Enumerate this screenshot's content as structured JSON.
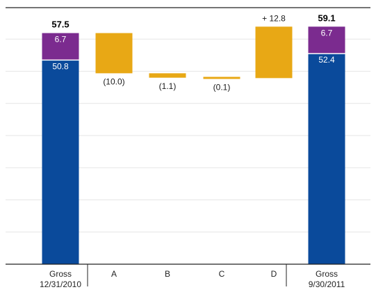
{
  "chart_data": {
    "type": "bar",
    "ylim": [
      0,
      64
    ],
    "grid": true,
    "categories": [
      "Gross\n12/31/2010",
      "A",
      "B",
      "C",
      "D",
      "Gross\n9/30/2011"
    ],
    "totals": [
      {
        "category": "Gross\n12/31/2010",
        "total": 57.5,
        "total_label": "57.5",
        "segments": [
          {
            "value": 50.8,
            "label": "50.8",
            "color": "#0a4a9b"
          },
          {
            "value": 6.7,
            "label": "6.7",
            "color": "#7b2b8f"
          }
        ]
      },
      {
        "category": "Gross\n9/30/2011",
        "total": 59.1,
        "total_label": "59.1",
        "segments": [
          {
            "value": 52.4,
            "label": "52.4",
            "color": "#0a4a9b"
          },
          {
            "value": 6.7,
            "label": "6.7",
            "color": "#7b2b8f"
          }
        ]
      }
    ],
    "changes": [
      {
        "category": "A",
        "from": 57.5,
        "to": 47.5,
        "value": -10.0,
        "label": "(10.0)"
      },
      {
        "category": "B",
        "from": 47.5,
        "to": 46.4,
        "value": -1.1,
        "label": "(1.1)"
      },
      {
        "category": "C",
        "from": 46.4,
        "to": 46.3,
        "value": -0.1,
        "label": "(0.1)"
      },
      {
        "category": "D",
        "from": 46.3,
        "to": 59.1,
        "value": 12.8,
        "label": "+ 12.8"
      }
    ],
    "change_color": "#e8a815"
  }
}
